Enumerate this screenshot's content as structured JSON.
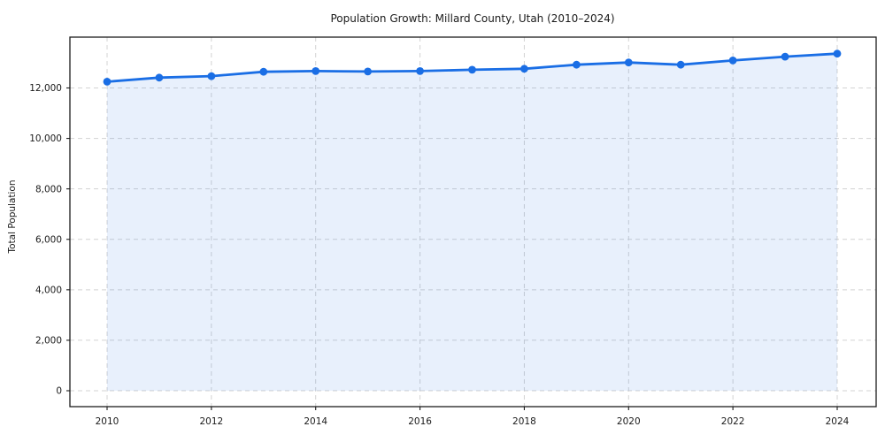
{
  "figure": {
    "background": "#ffffff"
  },
  "chart_data": {
    "type": "line",
    "title": "Population Growth: Millard County, Utah (2010–2024)",
    "xlabel": "",
    "ylabel": "Total Population",
    "x": [
      2010,
      2011,
      2012,
      2013,
      2014,
      2015,
      2016,
      2017,
      2018,
      2019,
      2020,
      2021,
      2022,
      2023,
      2024
    ],
    "series": [
      {
        "name": "Total Population",
        "values": [
          12250,
          12410,
          12470,
          12640,
          12670,
          12650,
          12670,
          12720,
          12760,
          12920,
          13010,
          12920,
          13090,
          13240,
          13360
        ]
      }
    ],
    "xticks": [
      2010,
      2012,
      2014,
      2016,
      2018,
      2020,
      2022,
      2024
    ],
    "xtick_labels": [
      "2010",
      "2012",
      "2014",
      "2016",
      "2018",
      "2020",
      "2022",
      "2024"
    ],
    "yticks": [
      0,
      2000,
      4000,
      6000,
      8000,
      10000,
      12000
    ],
    "ytick_labels": [
      "0",
      "2,000",
      "4,000",
      "6,000",
      "8,000",
      "10,000",
      "12,000"
    ],
    "xlim": [
      2009.29,
      2024.75
    ],
    "ylim": [
      -630,
      14010
    ],
    "grid": {
      "style": "dashed",
      "color": "#d3d3d3",
      "visible": true
    },
    "legend": "none",
    "line_color": "#1a6ee5",
    "marker": "circle",
    "marker_color": "#1a6ee5",
    "area_fill": true,
    "fill_color": "rgba(26,110,229,0.10)"
  }
}
